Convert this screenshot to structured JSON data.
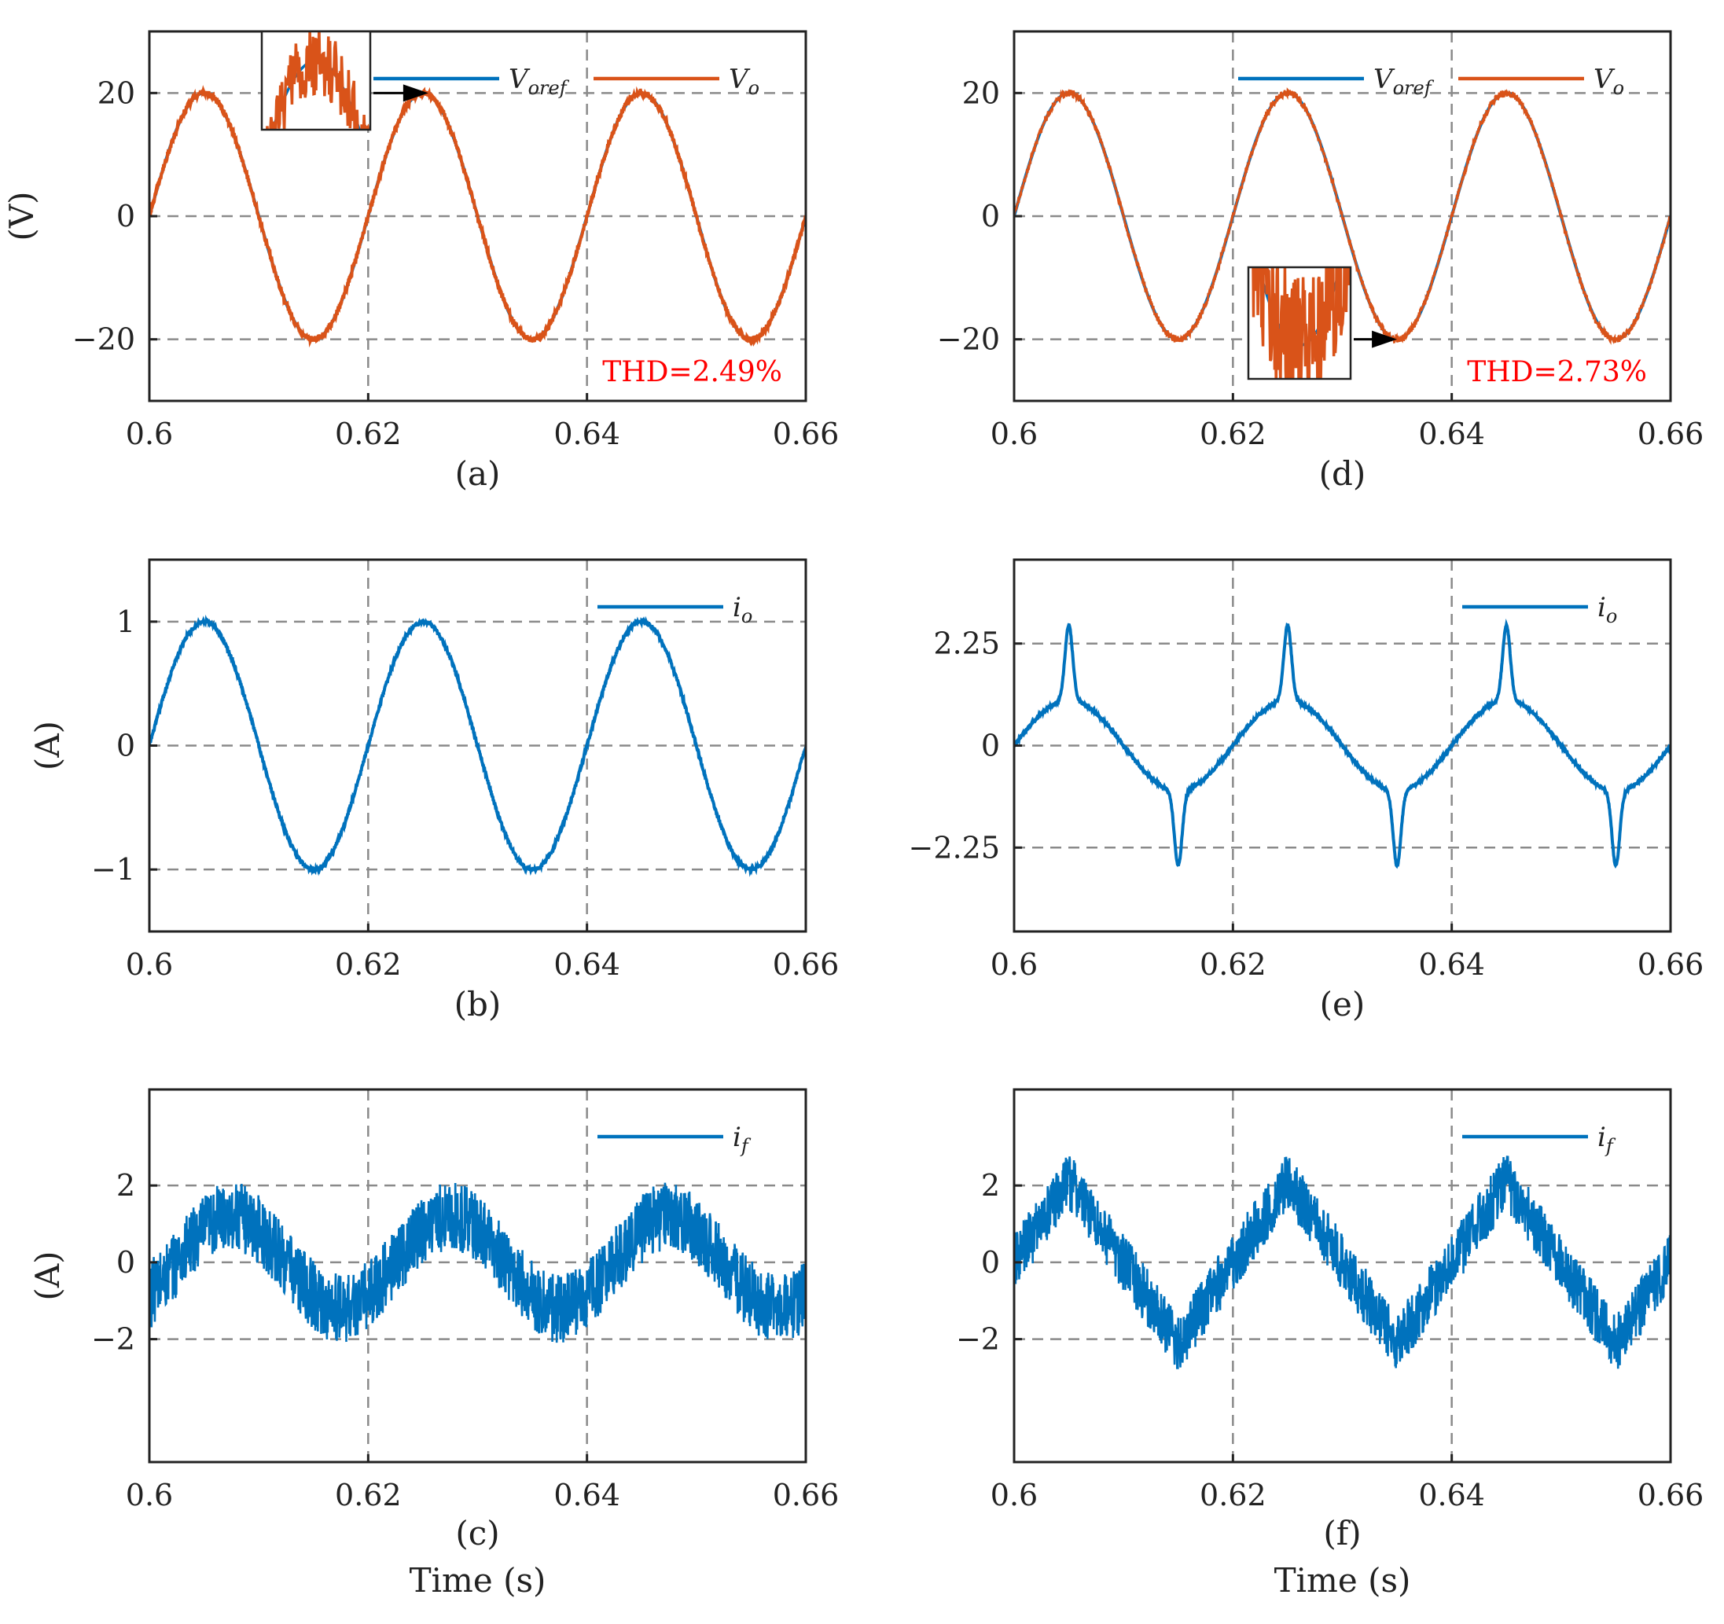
{
  "chart_data": [
    {
      "id": "a",
      "type": "line",
      "caption": "(a)",
      "ylabel": "(V)",
      "xlabel": "",
      "xlim": [
        0.6,
        0.66
      ],
      "ylim": [
        -30,
        30
      ],
      "xticks": [
        0.6,
        0.62,
        0.64,
        0.66
      ],
      "xticklabels": [
        "0.6",
        "0.62",
        "0.64",
        "0.66"
      ],
      "yticks": [
        -20,
        0,
        20
      ],
      "yticklabels": [
        "−20",
        "0",
        "20"
      ],
      "grid": true,
      "legend_position": "top-right",
      "annotation": "THD=2.49%",
      "annotation_color": "#ff0000",
      "series": [
        {
          "name": "V_oref",
          "legend_base": "V",
          "legend_sub": "oref",
          "color": "#0072bd",
          "waveform": "sine",
          "amplitude": 20,
          "frequency_hz": 50,
          "noise": 0
        },
        {
          "name": "V_o",
          "legend_base": "V",
          "legend_sub": "o",
          "color": "#d95319",
          "waveform": "sine",
          "amplitude": 20,
          "frequency_hz": 50,
          "noise": 0.5
        }
      ],
      "inset": {
        "x_range": [
          0.6035,
          0.6065
        ],
        "y_range": [
          18.6,
          20.6
        ],
        "noise_scale": 1.4,
        "arrow_target": [
          0.6255,
          20
        ]
      }
    },
    {
      "id": "b",
      "type": "line",
      "caption": "(b)",
      "ylabel": "(A)",
      "xlabel": "",
      "xlim": [
        0.6,
        0.66
      ],
      "ylim": [
        -1.5,
        1.5
      ],
      "xticks": [
        0.6,
        0.62,
        0.64,
        0.66
      ],
      "xticklabels": [
        "0.6",
        "0.62",
        "0.64",
        "0.66"
      ],
      "yticks": [
        -1,
        0,
        1
      ],
      "yticklabels": [
        "−1",
        "0",
        "1"
      ],
      "grid": true,
      "legend_position": "top-right",
      "series": [
        {
          "name": "i_o",
          "legend_base": "i",
          "legend_sub": "o",
          "color": "#0072bd",
          "waveform": "sine",
          "amplitude": 1,
          "frequency_hz": 50,
          "noise": 0.015
        }
      ]
    },
    {
      "id": "c",
      "type": "line",
      "caption": "(c)",
      "ylabel": "(A)",
      "xlabel": "Time (s)",
      "xlim": [
        0.6,
        0.66
      ],
      "ylim": [
        -5.2,
        4.5
      ],
      "xticks": [
        0.6,
        0.62,
        0.64,
        0.66
      ],
      "xticklabels": [
        "0.6",
        "0.62",
        "0.64",
        "0.66"
      ],
      "yticks": [
        -2,
        0,
        2
      ],
      "yticklabels": [
        "−2",
        "0",
        "2"
      ],
      "grid": true,
      "legend_position": "top-right",
      "series": [
        {
          "name": "i_f",
          "legend_base": "i",
          "legend_sub": "f",
          "color": "#0072bd",
          "waveform": "sine_shifted",
          "amplitude": 1.2,
          "frequency_hz": 50,
          "phase_shift_s": 0.0025,
          "noise": 0.9
        }
      ]
    },
    {
      "id": "d",
      "type": "line",
      "caption": "(d)",
      "ylabel": "",
      "xlabel": "",
      "xlim": [
        0.6,
        0.66
      ],
      "ylim": [
        -30,
        30
      ],
      "xticks": [
        0.6,
        0.62,
        0.64,
        0.66
      ],
      "xticklabels": [
        "0.6",
        "0.62",
        "0.64",
        "0.66"
      ],
      "yticks": [
        -20,
        0,
        20
      ],
      "yticklabels": [
        "−20",
        "0",
        "20"
      ],
      "grid": true,
      "legend_position": "top-right",
      "annotation": "THD=2.73%",
      "annotation_color": "#ff0000",
      "series": [
        {
          "name": "V_oref",
          "legend_base": "V",
          "legend_sub": "oref",
          "color": "#0072bd",
          "waveform": "sine",
          "amplitude": 20,
          "frequency_hz": 50,
          "noise": 0
        },
        {
          "name": "V_o",
          "legend_base": "V",
          "legend_sub": "o",
          "color": "#d95319",
          "waveform": "sine",
          "amplitude": 20,
          "frequency_hz": 50,
          "noise": 0.6
        }
      ],
      "inset": {
        "x_range": [
          0.6335,
          0.6365
        ],
        "y_range": [
          -20.6,
          -18.6
        ],
        "noise_scale": 2.2,
        "arrow_target": [
          0.635,
          -20
        ]
      }
    },
    {
      "id": "e",
      "type": "line",
      "caption": "(e)",
      "ylabel": "",
      "xlabel": "",
      "xlim": [
        0.6,
        0.66
      ],
      "ylim": [
        -4.1,
        4.1
      ],
      "xticks": [
        0.6,
        0.62,
        0.64,
        0.66
      ],
      "xticklabels": [
        "0.6",
        "0.62",
        "0.64",
        "0.66"
      ],
      "yticks": [
        -2.25,
        0,
        2.25
      ],
      "yticklabels": [
        "−2.25",
        "0",
        "2.25"
      ],
      "grid": true,
      "legend_position": "top-right",
      "series": [
        {
          "name": "i_o",
          "legend_base": "i",
          "legend_sub": "o",
          "color": "#0072bd",
          "waveform": "peaky",
          "amplitude": 1.0,
          "peak": 2.65,
          "frequency_hz": 50,
          "noise": 0.025
        }
      ]
    },
    {
      "id": "f",
      "type": "line",
      "caption": "(f)",
      "ylabel": "",
      "xlabel": "Time (s)",
      "xlim": [
        0.6,
        0.66
      ],
      "ylim": [
        -5.2,
        4.5
      ],
      "xticks": [
        0.6,
        0.62,
        0.64,
        0.66
      ],
      "xticklabels": [
        "0.6",
        "0.62",
        "0.64",
        "0.66"
      ],
      "yticks": [
        -2,
        0,
        2
      ],
      "yticklabels": [
        "−2",
        "0",
        "2"
      ],
      "grid": true,
      "legend_position": "top-right",
      "series": [
        {
          "name": "i_f",
          "legend_base": "i",
          "legend_sub": "f",
          "color": "#0072bd",
          "waveform": "sawtooth",
          "amplitude": 2.5,
          "frequency_hz": 50,
          "noise": 0.75
        }
      ]
    }
  ]
}
